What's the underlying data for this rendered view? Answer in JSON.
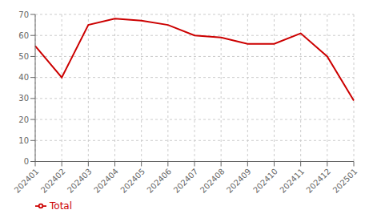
{
  "chart_data": {
    "type": "line",
    "categories": [
      "202401",
      "202402",
      "202403",
      "202404",
      "202405",
      "202406",
      "202407",
      "202408",
      "202409",
      "202410",
      "202411",
      "202412",
      "202501"
    ],
    "series": [
      {
        "name": "Total",
        "color": "#cc0000",
        "values": [
          55,
          40,
          65,
          68,
          67,
          65,
          60,
          59,
          56,
          56,
          61,
          50,
          29
        ]
      }
    ],
    "ylim": [
      0,
      70
    ],
    "yticks": [
      0,
      10,
      20,
      30,
      40,
      50,
      60,
      70
    ],
    "grid": true,
    "legend": "lower left"
  }
}
